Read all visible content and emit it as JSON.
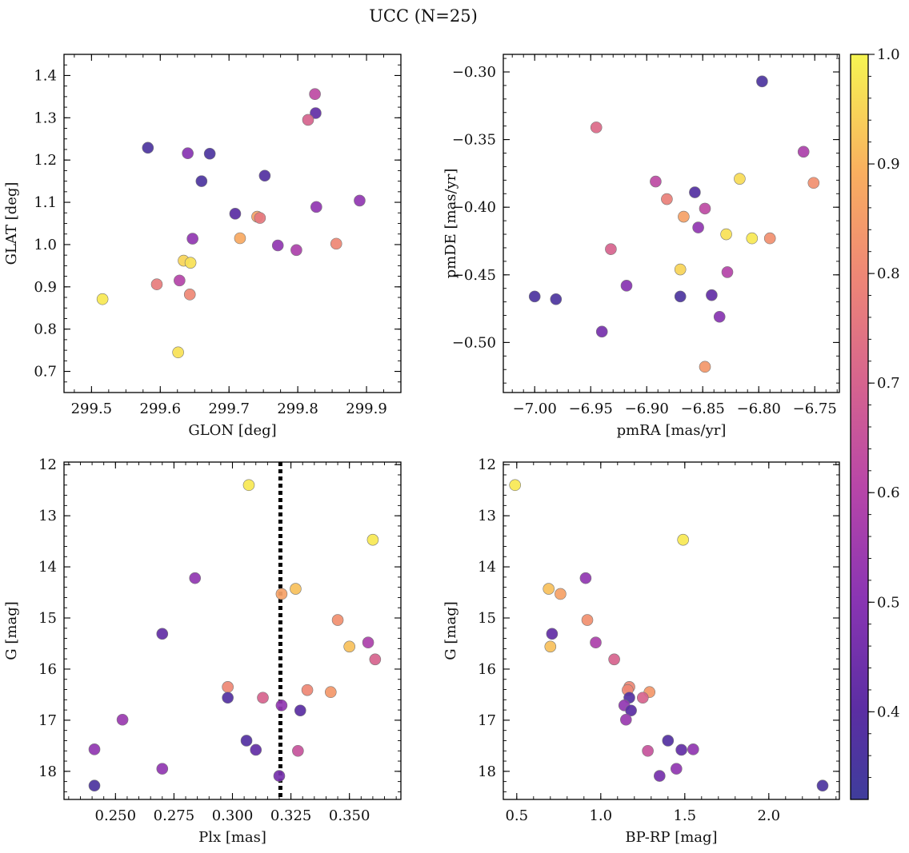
{
  "figure": {
    "title": "UCC (N=25)"
  },
  "colorbar": {
    "colormap": "plasma",
    "range": [
      0.32,
      1.0
    ],
    "ticks": [
      0.4,
      0.5,
      0.6,
      0.7,
      0.8,
      0.9,
      1.0
    ],
    "tick_labels": [
      "0.4",
      "0.5",
      "0.6",
      "0.7",
      "0.8",
      "0.9",
      "1.0"
    ]
  },
  "chart_data": [
    {
      "type": "scatter",
      "id": "glon-glat",
      "xlabel": "GLON [deg]",
      "ylabel": "GLAT [deg]",
      "xlim": [
        299.46,
        299.95
      ],
      "ylim": [
        0.65,
        1.45
      ],
      "xticks": [
        299.5,
        299.6,
        299.7,
        299.8,
        299.9
      ],
      "xtick_labels": [
        "299.5",
        "299.6",
        "299.7",
        "299.8",
        "299.9"
      ],
      "yticks": [
        0.7,
        0.8,
        0.9,
        1.0,
        1.1,
        1.2,
        1.3,
        1.4
      ],
      "ytick_labels": [
        "0.7",
        "0.8",
        "0.9",
        "1.0",
        "1.1",
        "1.2",
        "1.3",
        "1.4"
      ],
      "x_minor_step": 0.025,
      "y_minor_step": 0.025,
      "points": [
        {
          "x": 299.582,
          "y": 1.229,
          "c": 0.36
        },
        {
          "x": 299.64,
          "y": 1.216,
          "c": 0.5
        },
        {
          "x": 299.672,
          "y": 1.215,
          "c": 0.36
        },
        {
          "x": 299.66,
          "y": 1.15,
          "c": 0.36
        },
        {
          "x": 299.709,
          "y": 1.073,
          "c": 0.4
        },
        {
          "x": 299.752,
          "y": 1.163,
          "c": 0.38
        },
        {
          "x": 299.825,
          "y": 1.356,
          "c": 0.62
        },
        {
          "x": 299.826,
          "y": 1.311,
          "c": 0.42
        },
        {
          "x": 299.815,
          "y": 1.295,
          "c": 0.7
        },
        {
          "x": 299.827,
          "y": 1.089,
          "c": 0.52
        },
        {
          "x": 299.89,
          "y": 1.104,
          "c": 0.52
        },
        {
          "x": 299.741,
          "y": 1.066,
          "c": 0.86
        },
        {
          "x": 299.745,
          "y": 1.063,
          "c": 0.76
        },
        {
          "x": 299.716,
          "y": 1.015,
          "c": 0.88
        },
        {
          "x": 299.647,
          "y": 1.014,
          "c": 0.52
        },
        {
          "x": 299.771,
          "y": 0.998,
          "c": 0.52
        },
        {
          "x": 299.798,
          "y": 0.987,
          "c": 0.58
        },
        {
          "x": 299.856,
          "y": 1.002,
          "c": 0.8
        },
        {
          "x": 299.634,
          "y": 0.962,
          "c": 0.95
        },
        {
          "x": 299.644,
          "y": 0.957,
          "c": 0.97
        },
        {
          "x": 299.628,
          "y": 0.915,
          "c": 0.6
        },
        {
          "x": 299.595,
          "y": 0.906,
          "c": 0.77
        },
        {
          "x": 299.643,
          "y": 0.882,
          "c": 0.8
        },
        {
          "x": 299.516,
          "y": 0.871,
          "c": 0.98
        },
        {
          "x": 299.626,
          "y": 0.745,
          "c": 0.97
        }
      ]
    },
    {
      "type": "scatter",
      "id": "pmra-pmde",
      "xlabel": "pmRA [mas/yr]",
      "ylabel": "pmDE [mas/yr]",
      "xlim": [
        -7.028,
        -6.728
      ],
      "ylim": [
        -0.537,
        -0.287
      ],
      "xticks": [
        -7.0,
        -6.95,
        -6.9,
        -6.85,
        -6.8,
        -6.75
      ],
      "xtick_labels": [
        "−7.00",
        "−6.95",
        "−6.90",
        "−6.85",
        "−6.80",
        "−6.75"
      ],
      "yticks": [
        -0.5,
        -0.45,
        -0.4,
        -0.35,
        -0.3
      ],
      "ytick_labels": [
        "−0.50",
        "−0.45",
        "−0.40",
        "−0.35",
        "−0.30"
      ],
      "x_minor_step": 0.01,
      "y_minor_step": 0.01,
      "points": [
        {
          "x": -6.797,
          "y": -0.307,
          "c": 0.36
        },
        {
          "x": -6.945,
          "y": -0.341,
          "c": 0.72
        },
        {
          "x": -6.76,
          "y": -0.359,
          "c": 0.58
        },
        {
          "x": -6.817,
          "y": -0.379,
          "c": 0.96
        },
        {
          "x": -6.751,
          "y": -0.382,
          "c": 0.82
        },
        {
          "x": -6.892,
          "y": -0.381,
          "c": 0.62
        },
        {
          "x": -6.857,
          "y": -0.389,
          "c": 0.38
        },
        {
          "x": -6.882,
          "y": -0.394,
          "c": 0.78
        },
        {
          "x": -6.848,
          "y": -0.401,
          "c": 0.62
        },
        {
          "x": -6.867,
          "y": -0.407,
          "c": 0.86
        },
        {
          "x": -6.854,
          "y": -0.415,
          "c": 0.52
        },
        {
          "x": -6.829,
          "y": -0.42,
          "c": 0.97
        },
        {
          "x": -6.806,
          "y": -0.423,
          "c": 0.98
        },
        {
          "x": -6.79,
          "y": -0.423,
          "c": 0.82
        },
        {
          "x": -6.932,
          "y": -0.431,
          "c": 0.7
        },
        {
          "x": -6.87,
          "y": -0.446,
          "c": 0.95
        },
        {
          "x": -6.828,
          "y": -0.448,
          "c": 0.6
        },
        {
          "x": -6.918,
          "y": -0.458,
          "c": 0.5
        },
        {
          "x": -7.0,
          "y": -0.466,
          "c": 0.36
        },
        {
          "x": -6.981,
          "y": -0.468,
          "c": 0.36
        },
        {
          "x": -6.87,
          "y": -0.466,
          "c": 0.36
        },
        {
          "x": -6.842,
          "y": -0.465,
          "c": 0.42
        },
        {
          "x": -6.835,
          "y": -0.481,
          "c": 0.5
        },
        {
          "x": -6.94,
          "y": -0.492,
          "c": 0.46
        },
        {
          "x": -6.848,
          "y": -0.518,
          "c": 0.84
        }
      ]
    },
    {
      "type": "scatter",
      "id": "plx-g",
      "xlabel": "Plx [mas]",
      "ylabel": "G [mag]",
      "xlim": [
        0.228,
        0.372
      ],
      "ylim": [
        18.55,
        11.95
      ],
      "xticks": [
        0.25,
        0.275,
        0.3,
        0.325,
        0.35
      ],
      "xtick_labels": [
        "0.250",
        "0.275",
        "0.300",
        "0.325",
        "0.350"
      ],
      "yticks": [
        12,
        13,
        14,
        15,
        16,
        17,
        18
      ],
      "ytick_labels": [
        "12",
        "13",
        "14",
        "15",
        "16",
        "17",
        "18"
      ],
      "x_minor_step": 0.005,
      "y_minor_step": 0.2,
      "vline": 0.3205,
      "points": [
        {
          "x": 0.307,
          "y": 12.4,
          "c": 0.98
        },
        {
          "x": 0.36,
          "y": 13.47,
          "c": 0.98
        },
        {
          "x": 0.284,
          "y": 14.22,
          "c": 0.52
        },
        {
          "x": 0.327,
          "y": 14.43,
          "c": 0.92
        },
        {
          "x": 0.321,
          "y": 14.53,
          "c": 0.86
        },
        {
          "x": 0.27,
          "y": 15.31,
          "c": 0.42
        },
        {
          "x": 0.345,
          "y": 15.04,
          "c": 0.82
        },
        {
          "x": 0.35,
          "y": 15.56,
          "c": 0.92
        },
        {
          "x": 0.358,
          "y": 15.48,
          "c": 0.58
        },
        {
          "x": 0.361,
          "y": 15.81,
          "c": 0.7
        },
        {
          "x": 0.298,
          "y": 16.35,
          "c": 0.8
        },
        {
          "x": 0.298,
          "y": 16.56,
          "c": 0.38
        },
        {
          "x": 0.313,
          "y": 16.56,
          "c": 0.7
        },
        {
          "x": 0.332,
          "y": 16.41,
          "c": 0.8
        },
        {
          "x": 0.342,
          "y": 16.45,
          "c": 0.84
        },
        {
          "x": 0.321,
          "y": 16.71,
          "c": 0.52
        },
        {
          "x": 0.329,
          "y": 16.81,
          "c": 0.4
        },
        {
          "x": 0.253,
          "y": 16.99,
          "c": 0.54
        },
        {
          "x": 0.241,
          "y": 17.57,
          "c": 0.52
        },
        {
          "x": 0.306,
          "y": 17.4,
          "c": 0.38
        },
        {
          "x": 0.31,
          "y": 17.58,
          "c": 0.42
        },
        {
          "x": 0.328,
          "y": 17.6,
          "c": 0.65
        },
        {
          "x": 0.27,
          "y": 17.95,
          "c": 0.52
        },
        {
          "x": 0.32,
          "y": 18.09,
          "c": 0.46
        },
        {
          "x": 0.241,
          "y": 18.28,
          "c": 0.36
        }
      ]
    },
    {
      "type": "scatter",
      "id": "bprp-g",
      "xlabel": "BP-RP [mag]",
      "ylabel": "G [mag]",
      "xlim": [
        0.42,
        2.42
      ],
      "ylim": [
        18.55,
        11.95
      ],
      "xticks": [
        0.5,
        1.0,
        1.5,
        2.0
      ],
      "xtick_labels": [
        "0.5",
        "1.0",
        "1.5",
        "2.0"
      ],
      "yticks": [
        12,
        13,
        14,
        15,
        16,
        17,
        18
      ],
      "ytick_labels": [
        "12",
        "13",
        "14",
        "15",
        "16",
        "17",
        "18"
      ],
      "x_minor_step": 0.1,
      "y_minor_step": 0.2,
      "points": [
        {
          "x": 0.49,
          "y": 12.4,
          "c": 0.98
        },
        {
          "x": 1.49,
          "y": 13.47,
          "c": 0.98
        },
        {
          "x": 0.91,
          "y": 14.22,
          "c": 0.52
        },
        {
          "x": 0.69,
          "y": 14.43,
          "c": 0.92
        },
        {
          "x": 0.76,
          "y": 14.53,
          "c": 0.86
        },
        {
          "x": 0.71,
          "y": 15.31,
          "c": 0.42
        },
        {
          "x": 0.92,
          "y": 15.04,
          "c": 0.82
        },
        {
          "x": 0.7,
          "y": 15.56,
          "c": 0.92
        },
        {
          "x": 0.97,
          "y": 15.48,
          "c": 0.58
        },
        {
          "x": 1.08,
          "y": 15.81,
          "c": 0.7
        },
        {
          "x": 1.17,
          "y": 16.35,
          "c": 0.8
        },
        {
          "x": 1.16,
          "y": 16.41,
          "c": 0.8
        },
        {
          "x": 1.29,
          "y": 16.45,
          "c": 0.84
        },
        {
          "x": 1.17,
          "y": 16.56,
          "c": 0.38
        },
        {
          "x": 1.25,
          "y": 16.56,
          "c": 0.7
        },
        {
          "x": 1.14,
          "y": 16.71,
          "c": 0.52
        },
        {
          "x": 1.18,
          "y": 16.81,
          "c": 0.4
        },
        {
          "x": 1.15,
          "y": 16.99,
          "c": 0.54
        },
        {
          "x": 1.4,
          "y": 17.4,
          "c": 0.38
        },
        {
          "x": 1.48,
          "y": 17.58,
          "c": 0.42
        },
        {
          "x": 1.55,
          "y": 17.57,
          "c": 0.52
        },
        {
          "x": 1.28,
          "y": 17.6,
          "c": 0.65
        },
        {
          "x": 1.45,
          "y": 17.95,
          "c": 0.52
        },
        {
          "x": 1.35,
          "y": 18.09,
          "c": 0.46
        },
        {
          "x": 2.32,
          "y": 18.28,
          "c": 0.36
        }
      ]
    }
  ]
}
